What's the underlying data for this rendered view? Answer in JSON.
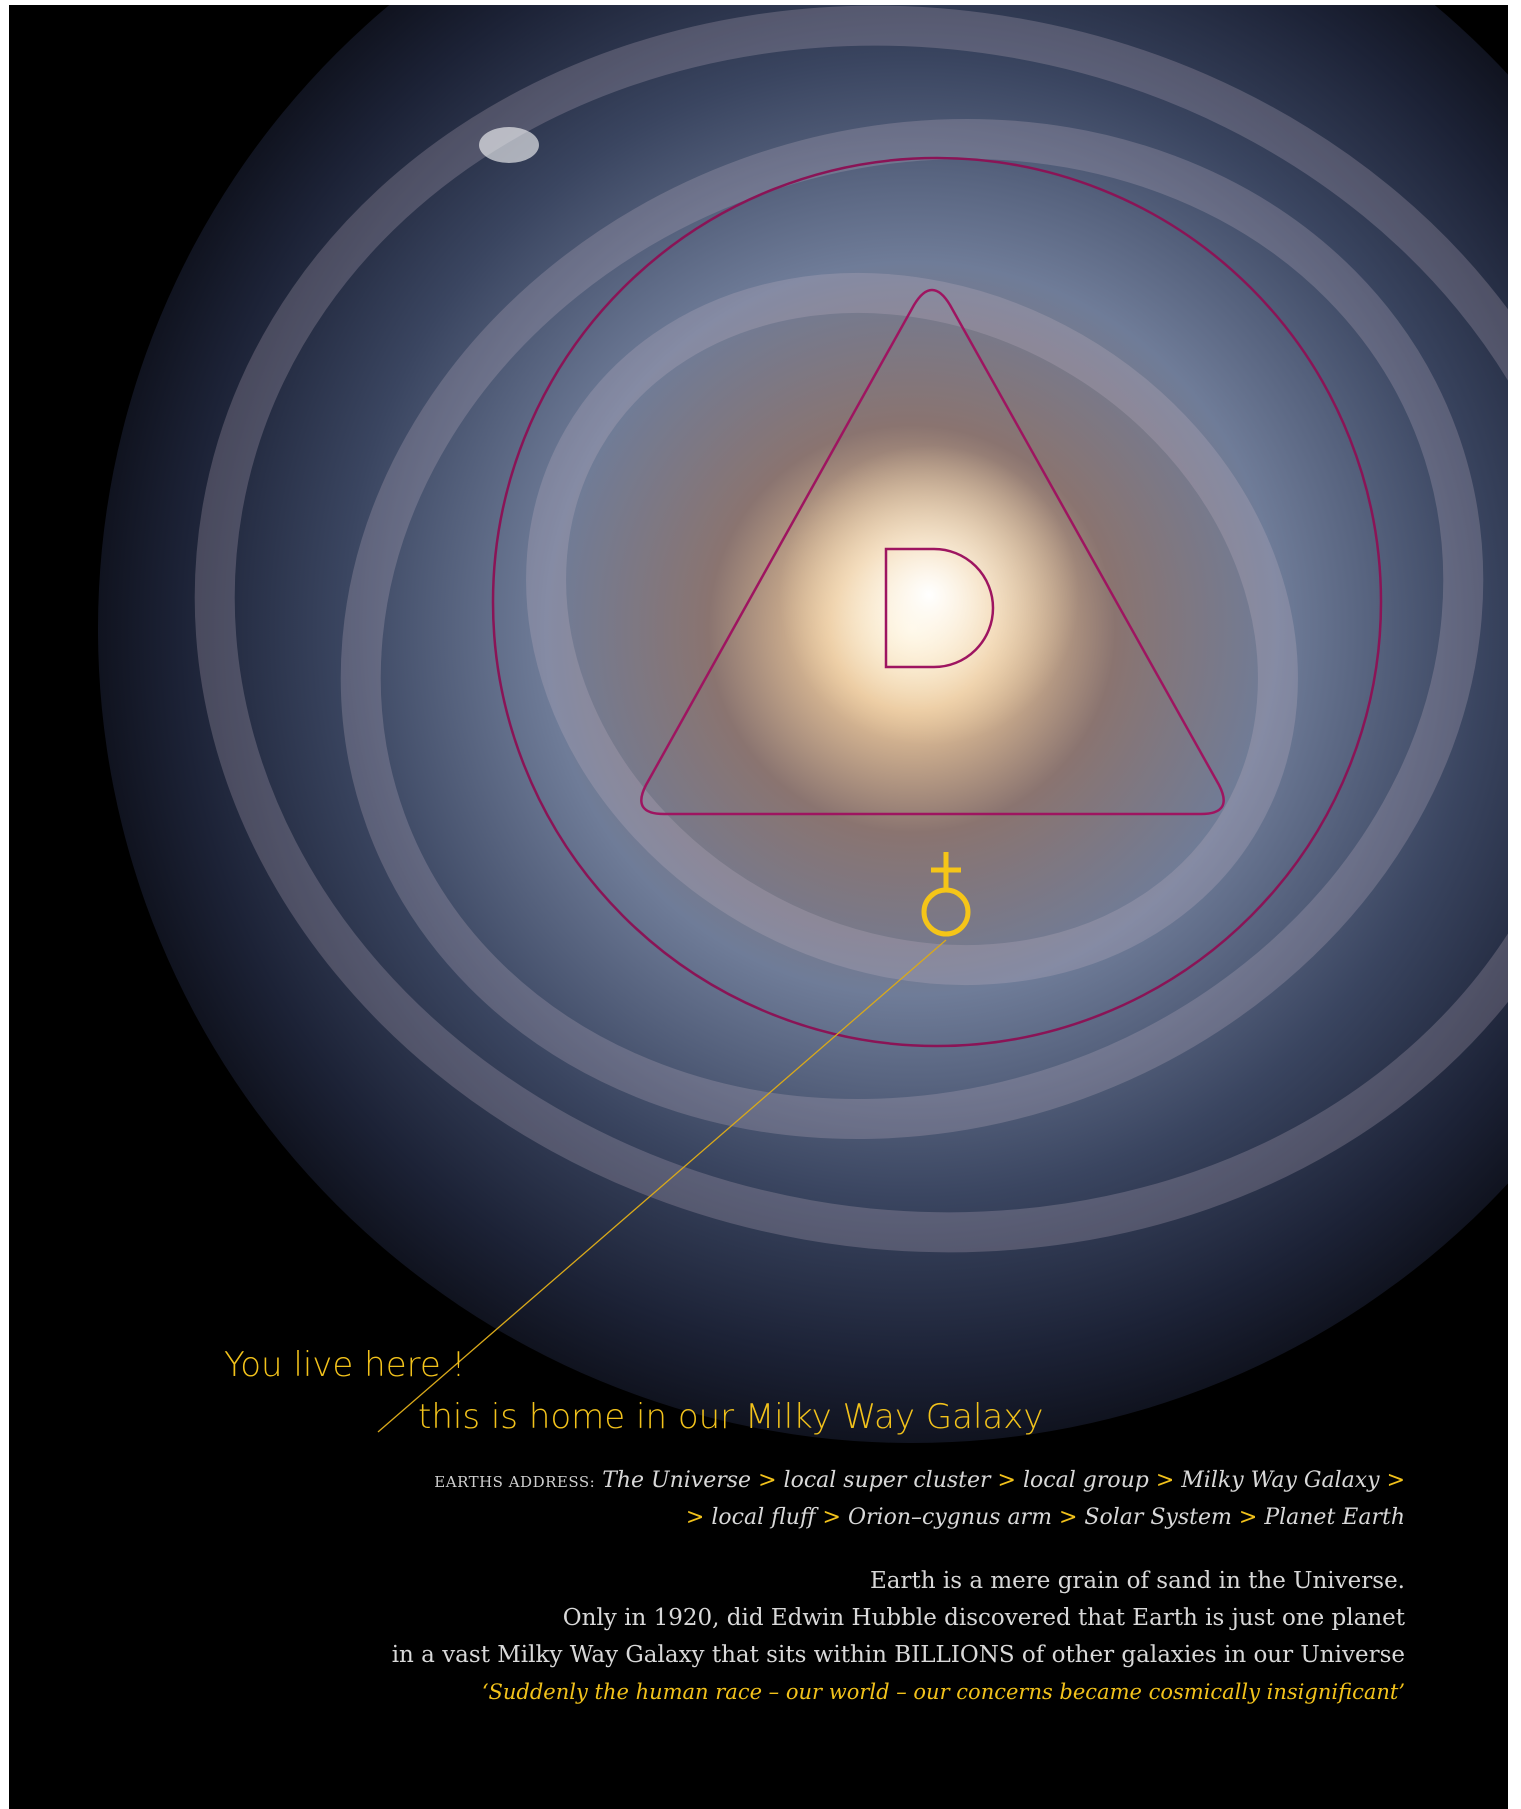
{
  "graphic": {
    "pointer_label": "You live here !",
    "caption": "this is home in our Milky Way Galaxy"
  },
  "address": {
    "label": "EARTHS ADDRESS:",
    "separator": ">",
    "lines": [
      [
        "The Universe",
        "local super cluster",
        "local group",
        "Milky Way Galaxy"
      ],
      [
        "local fluff",
        "Orion–cygnus arm",
        "Solar System",
        "Planet Earth"
      ]
    ]
  },
  "body": {
    "lines": [
      "Earth is a mere grain of sand in the Universe.",
      "Only in 1920, did Edwin Hubble discovered that Earth is just one planet",
      "in a vast Milky Way Galaxy that sits within BILLIONS of other galaxies in our Universe"
    ],
    "quote": "‘Suddenly the human race – our world – our concerns became cosmically insignificant’"
  }
}
